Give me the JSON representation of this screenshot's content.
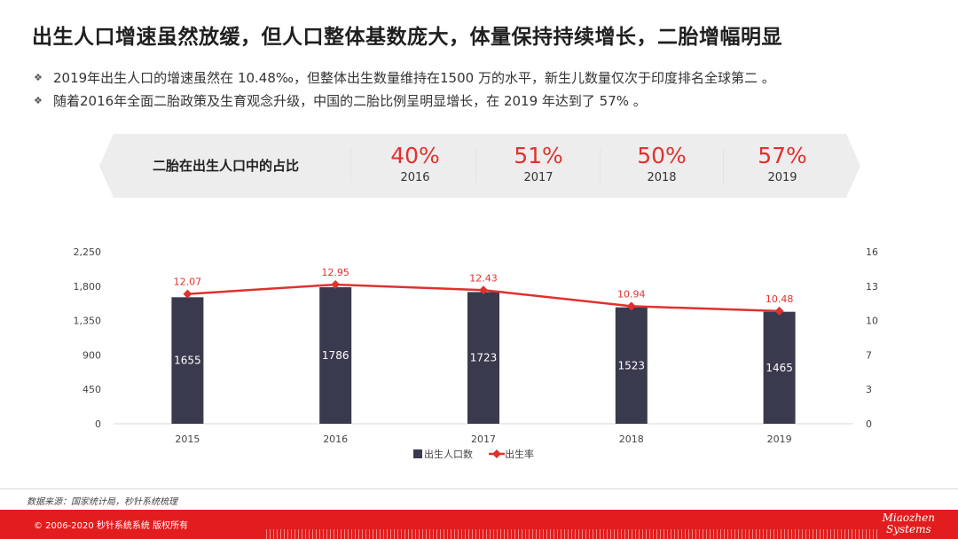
{
  "page": {
    "title": "出生人口增速虽然放缓，但人口整体基数庞大，体量保持持续增长，二胎增幅明显",
    "bullets": [
      "2019年出生人口的增速虽然在 10.48‰，但整体出生数量维持在1500 万的水平，新生儿数量仅次于印度排名全球第二 。",
      "随着2016年全面二胎政策及生育观念升级，中国的二胎比例呈明显增长，在 2019 年达到了 57% 。"
    ],
    "bullet_mark": "❖"
  },
  "band": {
    "label": "二胎在出生人口中的占比",
    "stats": [
      {
        "pct": "40%",
        "year": "2016"
      },
      {
        "pct": "51%",
        "year": "2017"
      },
      {
        "pct": "50%",
        "year": "2018"
      },
      {
        "pct": "57%",
        "year": "2019"
      }
    ]
  },
  "chart_data": {
    "type": "bar",
    "categories": [
      "2015",
      "2016",
      "2017",
      "2018",
      "2019"
    ],
    "series": [
      {
        "name": "出生人口数",
        "type": "bar",
        "axis": "left",
        "values": [
          1655,
          1786,
          1723,
          1523,
          1465
        ],
        "color": "#3a3a4e"
      },
      {
        "name": "出生率",
        "type": "line",
        "axis": "right",
        "values": [
          12.07,
          12.95,
          12.43,
          10.94,
          10.48
        ],
        "color": "#e0312f"
      }
    ],
    "y_left": {
      "ticks": [
        "0",
        "450",
        "900",
        "1,350",
        "1,800",
        "2,250"
      ],
      "range": [
        0,
        2250
      ]
    },
    "y_right": {
      "ticks": [
        "0",
        "3",
        "7",
        "10",
        "13",
        "16"
      ],
      "range": [
        0,
        16
      ]
    },
    "legend": "bottom-center",
    "grid": false
  },
  "source": "数据来源：国家统计局，秒针系统梳理",
  "footer": {
    "copyright": "© 2006-2020 秒针系统系统 版权所有",
    "logo_line1": "Miaozhen",
    "logo_line2": "Systems",
    "brand_color": "#e31d1d"
  }
}
